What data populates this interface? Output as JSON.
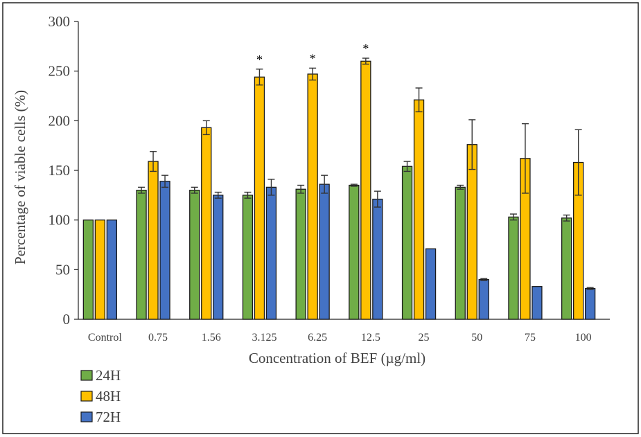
{
  "chart_data": {
    "type": "bar",
    "title": "",
    "xlabel": "Concentration of BEF (µg/ml)",
    "ylabel": "Percentage of viable cells (%)",
    "ylim": [
      0,
      300
    ],
    "yticks": [
      0,
      50,
      100,
      150,
      200,
      250,
      300
    ],
    "categories": [
      "Control",
      "0.75",
      "1.56",
      "3.125",
      "6.25",
      "12.5",
      "25",
      "50",
      "75",
      "100"
    ],
    "series": [
      {
        "name": "24H",
        "color": "#70ad47",
        "values": [
          100,
          130,
          130,
          125,
          131,
          135,
          154,
          133,
          103,
          102
        ],
        "errors": [
          0,
          3,
          3,
          3,
          4,
          1,
          5,
          2,
          3,
          3
        ]
      },
      {
        "name": "48H",
        "color": "#ffc000",
        "values": [
          100,
          159,
          193,
          244,
          247,
          260,
          221,
          176,
          162,
          158
        ],
        "errors": [
          0,
          10,
          7,
          8,
          6,
          3,
          12,
          25,
          35,
          33
        ]
      },
      {
        "name": "72H",
        "color": "#4472c4",
        "values": [
          100,
          139,
          125,
          133,
          136,
          121,
          71,
          40,
          33,
          31
        ],
        "errors": [
          0,
          6,
          3,
          8,
          9,
          8,
          0,
          1,
          0,
          1
        ]
      }
    ],
    "annotations": [
      {
        "text": "*",
        "category": "3.125",
        "series": "48H"
      },
      {
        "text": "*",
        "category": "6.25",
        "series": "48H"
      },
      {
        "text": "*",
        "category": "12.5",
        "series": "48H"
      }
    ],
    "legend": {
      "position": "bottom-left",
      "entries": [
        "24H",
        "48H",
        "72H"
      ]
    },
    "grid": false
  }
}
